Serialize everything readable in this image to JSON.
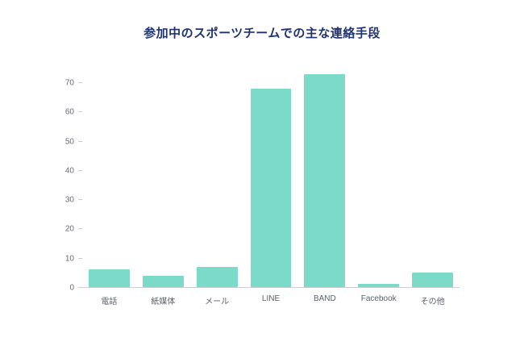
{
  "title": "参加中のスポーツチームでの主な連絡手段",
  "colors": {
    "bar": "#7CDBC8",
    "title": "#1F3370",
    "axis_text": "#666B74",
    "axis_line": "#C9CCD1"
  },
  "chart_data": {
    "type": "bar",
    "title": "参加中のスポーツチームでの主な連絡手段",
    "categories": [
      "電話",
      "紙媒体",
      "メール",
      "LINE",
      "BAND",
      "Facebook",
      "その他"
    ],
    "values": [
      6,
      4,
      7,
      68,
      73,
      1,
      5
    ],
    "xlabel": "",
    "ylabel": "",
    "ylim": [
      0,
      75
    ],
    "yticks": [
      0,
      10,
      20,
      30,
      40,
      50,
      60,
      70
    ],
    "grid": false,
    "legend_position": "none"
  }
}
